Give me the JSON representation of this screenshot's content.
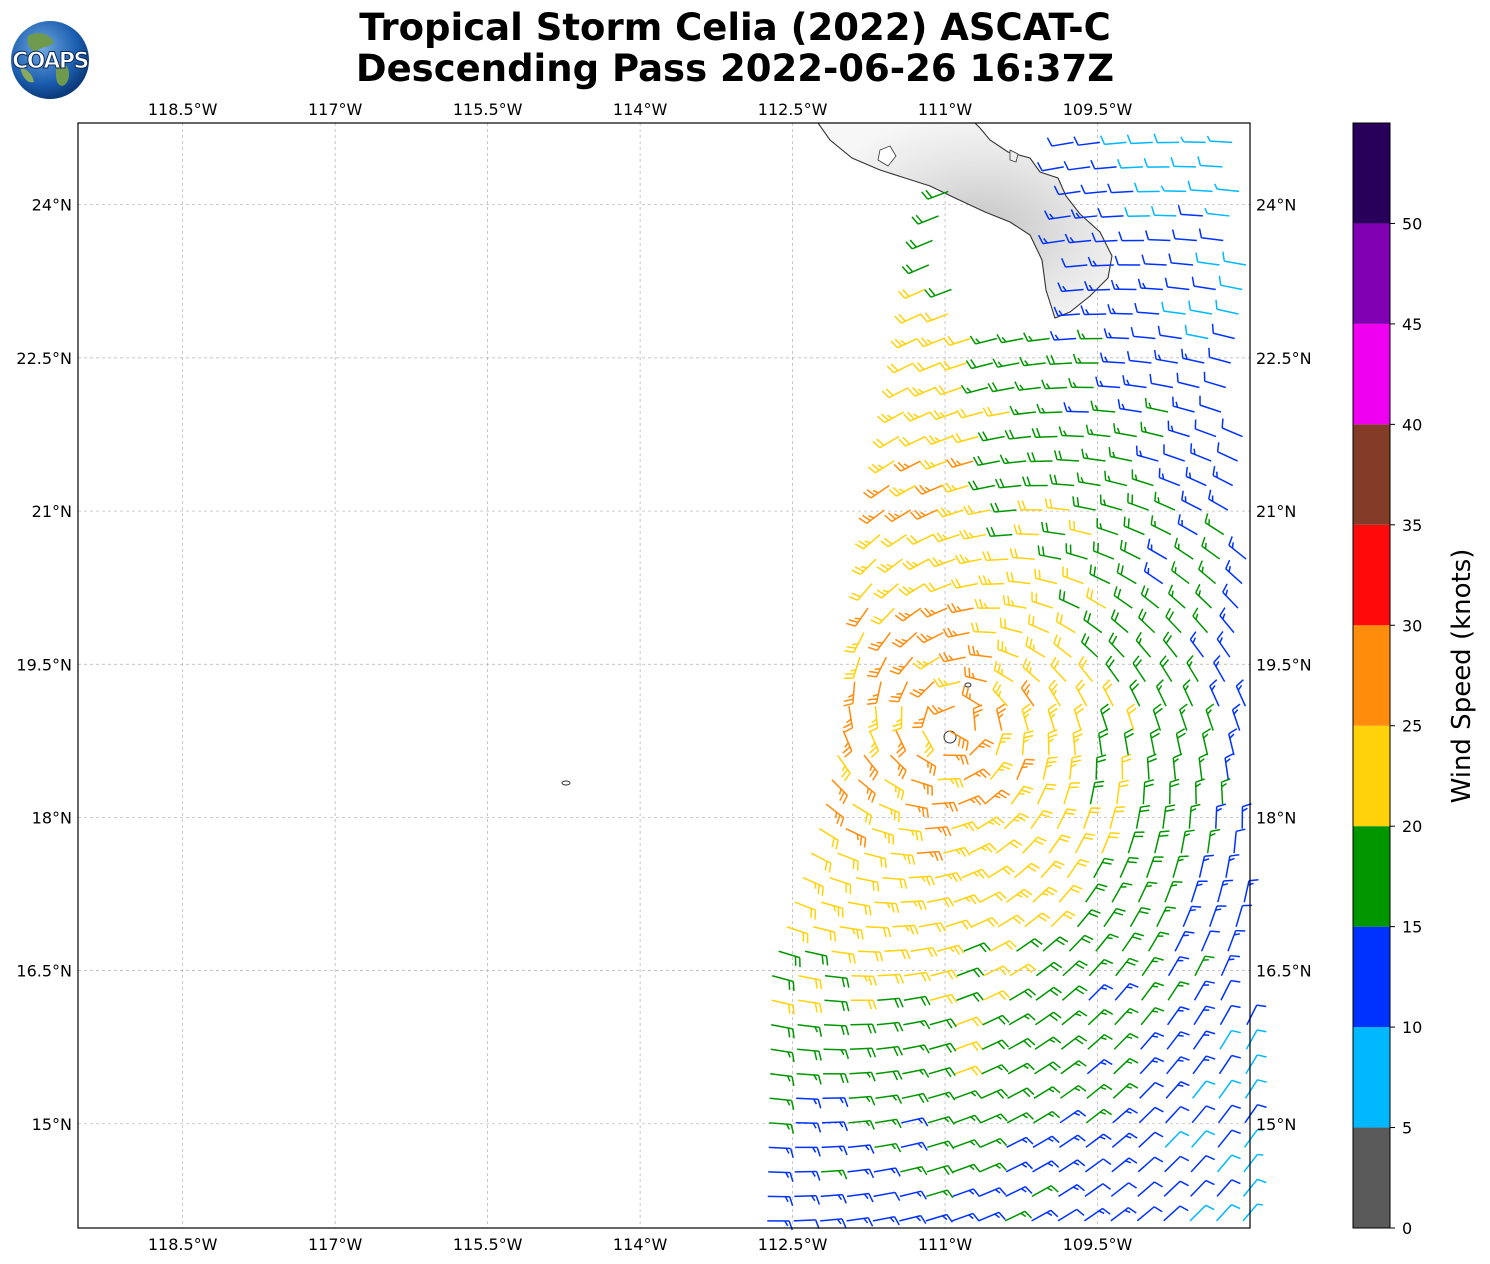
{
  "title": {
    "line1": "Tropical Storm Celia (2022) ASCAT-C",
    "line2": "Descending Pass 2022-06-26 16:37Z"
  },
  "logo": {
    "text": "COAPS"
  },
  "map": {
    "lon_labels": [
      "118.5°W",
      "117°W",
      "115.5°W",
      "114°W",
      "112.5°W",
      "111°W",
      "109.5°W"
    ],
    "lat_labels": [
      "24°N",
      "22.5°N",
      "21°N",
      "19.5°N",
      "18°N",
      "16.5°N",
      "15°N"
    ],
    "lon_range": [
      -119.53,
      -108.0
    ],
    "lat_range": [
      13.98,
      24.8
    ],
    "gridlines": true
  },
  "colorbar": {
    "label": "Wind Speed (knots)",
    "ticks": [
      "0",
      "5",
      "10",
      "15",
      "20",
      "25",
      "30",
      "35",
      "40",
      "45",
      "50"
    ],
    "bins": [
      {
        "from": 0,
        "to": 5,
        "color": "#5a5a5a"
      },
      {
        "from": 5,
        "to": 10,
        "color": "#00b8ff"
      },
      {
        "from": 10,
        "to": 15,
        "color": "#0032ff"
      },
      {
        "from": 15,
        "to": 20,
        "color": "#009600"
      },
      {
        "from": 20,
        "to": 25,
        "color": "#ffd20a"
      },
      {
        "from": 25,
        "to": 30,
        "color": "#ff8c0a"
      },
      {
        "from": 30,
        "to": 35,
        "color": "#ff0a0a"
      },
      {
        "from": 35,
        "to": 40,
        "color": "#823c28"
      },
      {
        "from": 40,
        "to": 45,
        "color": "#f000f0"
      },
      {
        "from": 45,
        "to": 50,
        "color": "#8200b4"
      },
      {
        "from": 50,
        "to": 55,
        "color": "#28005a"
      }
    ]
  },
  "swath": {
    "lat_start": 14.0,
    "lat_end": 24.8,
    "west_edge": [
      [
        14.0,
        -112.75
      ],
      [
        16.5,
        -112.7
      ],
      [
        18.0,
        -112.2
      ],
      [
        19.5,
        -111.85
      ],
      [
        21.0,
        -111.6
      ],
      [
        22.5,
        -111.3
      ],
      [
        23.8,
        -111.1
      ],
      [
        24.8,
        -110.7
      ]
    ],
    "east_lon": -108.0,
    "storm_center": [
      18.9,
      -110.9
    ]
  }
}
